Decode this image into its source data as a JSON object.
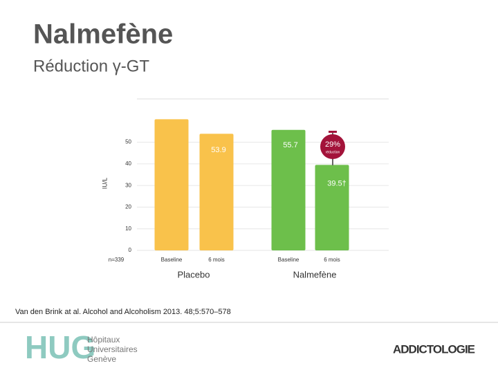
{
  "title": "Nalmefène",
  "subtitle": "Réduction γ-GT",
  "chart_data": {
    "type": "bar",
    "y_label": "IU/L",
    "n_label": "n=339",
    "categories": [
      "Baseline",
      "6 mois"
    ],
    "series": [
      {
        "name": "Placebo",
        "color": "#f9c24b",
        "values": [
          60.6,
          53.9
        ],
        "value_labels": [
          null,
          "53.9"
        ]
      },
      {
        "name": "Nalmefène",
        "color": "#6dbf4b",
        "values": [
          55.7,
          39.5
        ],
        "value_labels": [
          "55.7",
          "39.5†"
        ]
      }
    ],
    "ylim": [
      0,
      70
    ],
    "yticks": [
      0,
      10,
      20,
      30,
      40,
      50
    ],
    "grid": true,
    "annotation": {
      "text": "29%",
      "subtext": "réduction",
      "color": "#a3133a"
    }
  },
  "citation": "Van den Brink at al. Alcohol and Alcoholism 2013. 48;5:570–578",
  "logos": {
    "hug": "HUG",
    "hospital": [
      "Hôpitaux",
      "Universitaires",
      "Genève"
    ],
    "dept": "ADDICTOLOGIE"
  }
}
